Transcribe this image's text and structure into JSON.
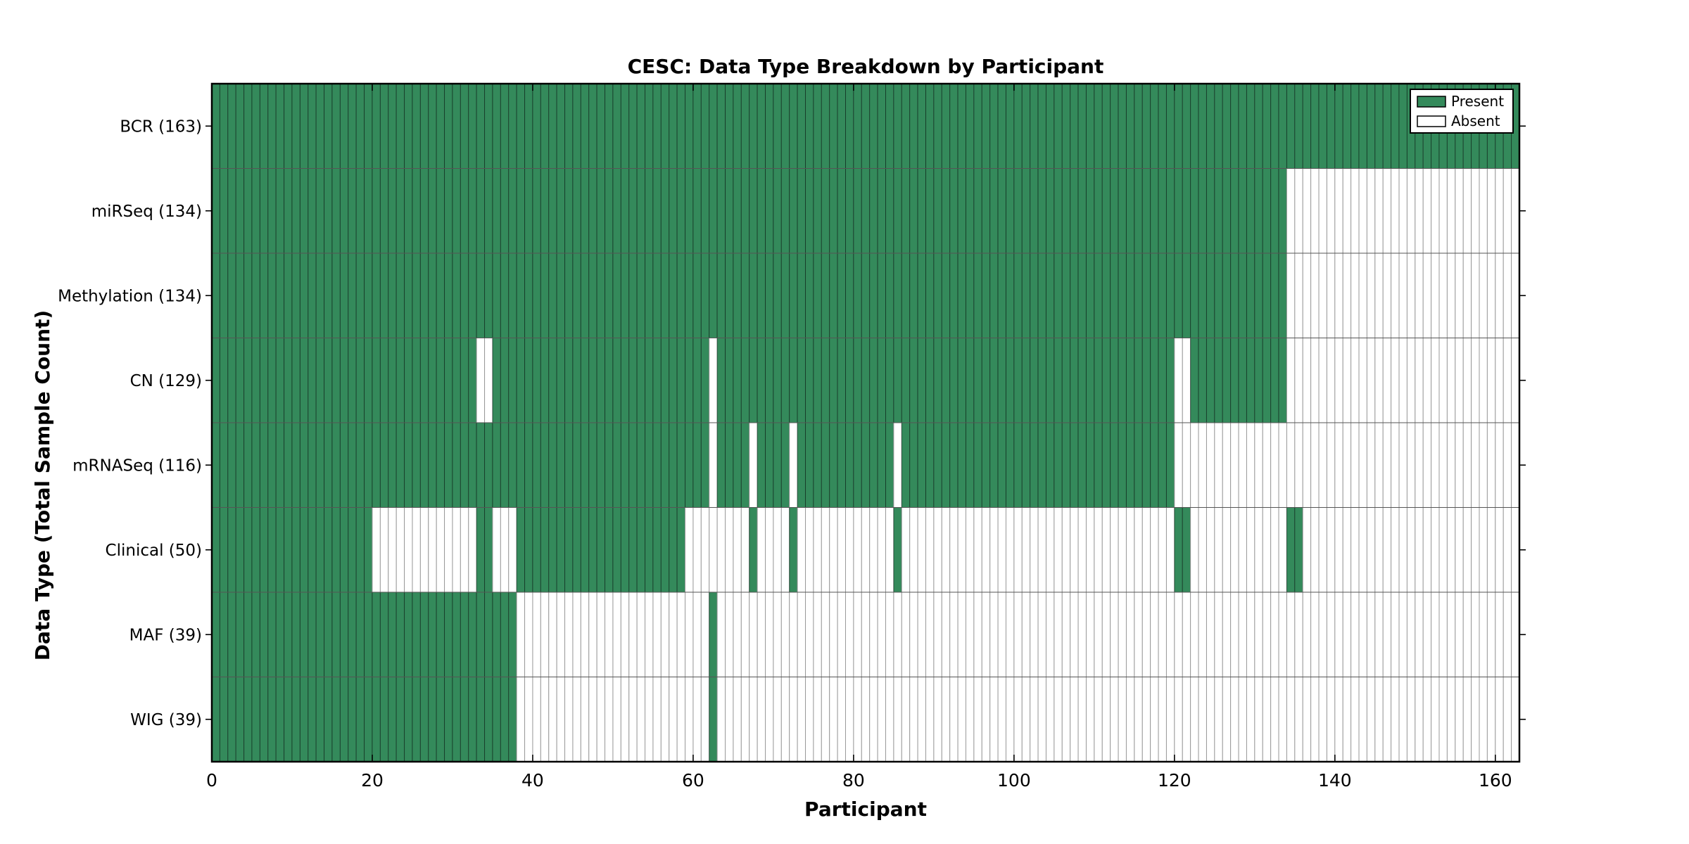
{
  "chart_data": {
    "type": "heatmap",
    "title": "CESC: Data Type Breakdown by Participant",
    "xlabel": "Participant",
    "ylabel": "Data Type (Total Sample Count)",
    "x_ticks": [
      0,
      20,
      40,
      60,
      80,
      100,
      120,
      140,
      160
    ],
    "x_max": 163,
    "grid": true,
    "legend_position": "upper right",
    "legend": [
      {
        "label": "Present",
        "color": "#348a5b"
      },
      {
        "label": "Absent",
        "color": "#ffffff"
      }
    ],
    "colors": {
      "present": "#348a5b",
      "absent": "#ffffff",
      "present_edge": "rgba(10,25,18,0.55)",
      "absent_edge": "#9a9a9a",
      "frame": "#000000"
    },
    "rows": [
      {
        "label": "BCR (163)",
        "data_type": "BCR",
        "total_samples": 163,
        "present_ranges": [
          [
            0,
            162
          ]
        ]
      },
      {
        "label": "miRSeq (134)",
        "data_type": "miRSeq",
        "total_samples": 134,
        "present_ranges": [
          [
            0,
            133
          ]
        ]
      },
      {
        "label": "Methylation (134)",
        "data_type": "Methylation",
        "total_samples": 134,
        "present_ranges": [
          [
            0,
            133
          ]
        ]
      },
      {
        "label": "CN (129)",
        "data_type": "CN",
        "total_samples": 129,
        "present_ranges": [
          [
            0,
            32
          ],
          [
            35,
            61
          ],
          [
            63,
            119
          ],
          [
            122,
            133
          ]
        ]
      },
      {
        "label": "mRNASeq (116)",
        "data_type": "mRNASeq",
        "total_samples": 116,
        "present_ranges": [
          [
            0,
            61
          ],
          [
            63,
            66
          ],
          [
            68,
            71
          ],
          [
            73,
            84
          ],
          [
            86,
            119
          ]
        ]
      },
      {
        "label": "Clinical (50)",
        "data_type": "Clinical",
        "total_samples": 50,
        "present_ranges": [
          [
            0,
            19
          ],
          [
            33,
            34
          ],
          [
            38,
            58
          ],
          [
            67,
            67
          ],
          [
            72,
            72
          ],
          [
            85,
            85
          ],
          [
            120,
            121
          ],
          [
            134,
            135
          ]
        ]
      },
      {
        "label": "MAF (39)",
        "data_type": "MAF",
        "total_samples": 39,
        "present_ranges": [
          [
            0,
            37
          ],
          [
            62,
            62
          ]
        ]
      },
      {
        "label": "WIG (39)",
        "data_type": "WIG",
        "total_samples": 39,
        "present_ranges": [
          [
            0,
            37
          ],
          [
            62,
            62
          ]
        ]
      }
    ]
  }
}
